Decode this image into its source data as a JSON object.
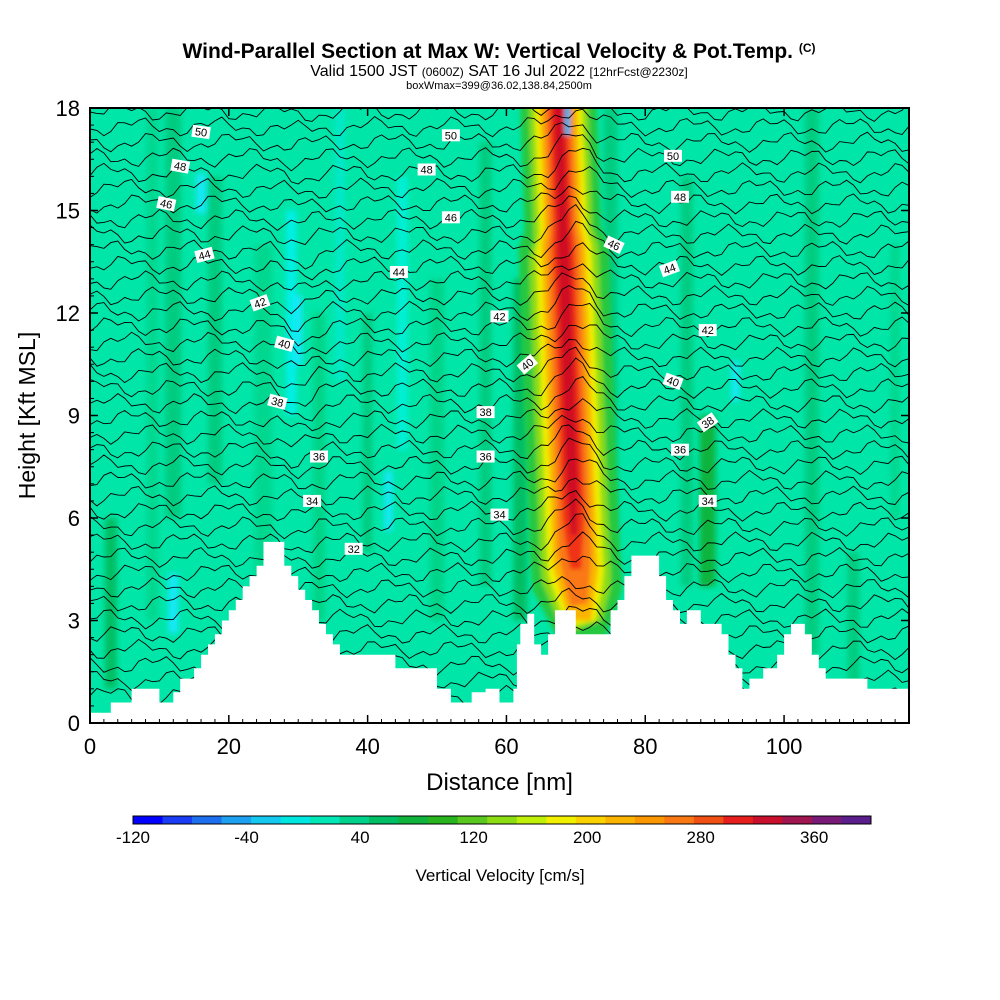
{
  "title": {
    "main": "Wind-Parallel Section at Max W: Vertical Velocity & Pot.Temp.",
    "copyright": "(C)",
    "valid_prefix": "Valid 1500 JST",
    "valid_zulu": "(0600Z)",
    "valid_date": "SAT 16 Jul 2022",
    "forecast": "[12hrFcst@2230z]",
    "box": "boxWmax=399@36.02,138.84,2500m"
  },
  "chart_data": {
    "type": "heatmap",
    "xlabel": "Distance [nm]",
    "ylabel": "Height [Kft MSL]",
    "xlim": [
      0,
      118
    ],
    "ylim": [
      0,
      18
    ],
    "x_ticks": [
      0,
      20,
      40,
      60,
      80,
      100
    ],
    "y_ticks": [
      0,
      3,
      6,
      9,
      12,
      15,
      18
    ],
    "colorbar": {
      "label": "Vertical Velocity [cm/s]",
      "ticks": [
        "-120",
        "-40",
        "40",
        "120",
        "200",
        "280",
        "360"
      ],
      "colors": [
        "#0000ff",
        "#1a3cf5",
        "#1e6ef0",
        "#1ea0f0",
        "#14c8f0",
        "#00e6e0",
        "#00e6b4",
        "#00d28c",
        "#00be64",
        "#10b43c",
        "#28b41e",
        "#5ac81e",
        "#8cdc14",
        "#bef00a",
        "#f0f000",
        "#fad200",
        "#fab400",
        "#fa9600",
        "#fa7814",
        "#f05014",
        "#e61e1e",
        "#c8102d",
        "#a01450",
        "#7a1a78",
        "#5a1e8c"
      ],
      "min": -120,
      "max": 400
    },
    "updraft_core": {
      "x_center": 70,
      "bottom_kft": 2.5,
      "top_kft": 18,
      "max_w": 399
    },
    "terrain_kft": [
      [
        0,
        0.3
      ],
      [
        3,
        0.3
      ],
      [
        3,
        0.6
      ],
      [
        6,
        0.6
      ],
      [
        6,
        1.0
      ],
      [
        10,
        1.0
      ],
      [
        10,
        0.6
      ],
      [
        12,
        0.6
      ],
      [
        12,
        0.9
      ],
      [
        13,
        0.9
      ],
      [
        13,
        1.3
      ],
      [
        15,
        1.3
      ],
      [
        15,
        1.6
      ],
      [
        16,
        1.6
      ],
      [
        16,
        2.0
      ],
      [
        17,
        2.0
      ],
      [
        17,
        2.3
      ],
      [
        18,
        2.3
      ],
      [
        18,
        2.6
      ],
      [
        19,
        2.6
      ],
      [
        19,
        3.0
      ],
      [
        20,
        3.0
      ],
      [
        20,
        3.3
      ],
      [
        21,
        3.3
      ],
      [
        21,
        3.6
      ],
      [
        22,
        3.6
      ],
      [
        22,
        4.0
      ],
      [
        23,
        4.0
      ],
      [
        23,
        4.3
      ],
      [
        24,
        4.3
      ],
      [
        24,
        4.6
      ],
      [
        25,
        4.6
      ],
      [
        25,
        5.3
      ],
      [
        28,
        5.3
      ],
      [
        28,
        4.6
      ],
      [
        29,
        4.6
      ],
      [
        29,
        4.3
      ],
      [
        30,
        4.3
      ],
      [
        30,
        3.9
      ],
      [
        31,
        3.9
      ],
      [
        31,
        3.6
      ],
      [
        32,
        3.6
      ],
      [
        32,
        3.3
      ],
      [
        33,
        3.3
      ],
      [
        33,
        2.9
      ],
      [
        34,
        2.9
      ],
      [
        34,
        2.6
      ],
      [
        35,
        2.6
      ],
      [
        35,
        2.3
      ],
      [
        36,
        2.3
      ],
      [
        36,
        2.0
      ],
      [
        44,
        2.0
      ],
      [
        44,
        1.6
      ],
      [
        50,
        1.6
      ],
      [
        50,
        1.0
      ],
      [
        52,
        1.0
      ],
      [
        52,
        0.6
      ],
      [
        55,
        0.6
      ],
      [
        55,
        0.9
      ],
      [
        57,
        0.9
      ],
      [
        57,
        1.0
      ],
      [
        59,
        1.0
      ],
      [
        59,
        0.6
      ],
      [
        61,
        0.6
      ],
      [
        61,
        1.0
      ],
      [
        61.5,
        1.0
      ],
      [
        61.5,
        2.3
      ],
      [
        62,
        2.3
      ],
      [
        62,
        2.9
      ],
      [
        63,
        2.9
      ],
      [
        63,
        3.2
      ],
      [
        64,
        3.2
      ],
      [
        64,
        2.3
      ],
      [
        65,
        2.3
      ],
      [
        65,
        2.0
      ],
      [
        66,
        2.0
      ],
      [
        66,
        2.6
      ],
      [
        67,
        2.6
      ],
      [
        67,
        3.3
      ],
      [
        70,
        3.3
      ],
      [
        70,
        2.6
      ],
      [
        72,
        2.6
      ],
      [
        72,
        2.6
      ],
      [
        75,
        2.6
      ],
      [
        75,
        3.3
      ],
      [
        76,
        3.3
      ],
      [
        76,
        3.6
      ],
      [
        77,
        3.6
      ],
      [
        77,
        4.3
      ],
      [
        78,
        4.3
      ],
      [
        78,
        4.9
      ],
      [
        82,
        4.9
      ],
      [
        82,
        4.3
      ],
      [
        83,
        4.3
      ],
      [
        83,
        3.6
      ],
      [
        84,
        3.6
      ],
      [
        84,
        3.3
      ],
      [
        85,
        3.3
      ],
      [
        85,
        2.9
      ],
      [
        86,
        2.9
      ],
      [
        86,
        3.3
      ],
      [
        88,
        3.3
      ],
      [
        88,
        2.9
      ],
      [
        91,
        2.9
      ],
      [
        91,
        2.6
      ],
      [
        92,
        2.6
      ],
      [
        92,
        2.0
      ],
      [
        93,
        2.0
      ],
      [
        93,
        1.6
      ],
      [
        94,
        1.6
      ],
      [
        94,
        1.0
      ],
      [
        95,
        1.0
      ],
      [
        95,
        1.3
      ],
      [
        97,
        1.3
      ],
      [
        97,
        1.6
      ],
      [
        99,
        1.6
      ],
      [
        99,
        2.0
      ],
      [
        100,
        2.0
      ],
      [
        100,
        2.6
      ],
      [
        101,
        2.6
      ],
      [
        101,
        2.9
      ],
      [
        103,
        2.9
      ],
      [
        103,
        2.6
      ],
      [
        104,
        2.6
      ],
      [
        104,
        2.0
      ],
      [
        105,
        2.0
      ],
      [
        105,
        1.6
      ],
      [
        106,
        1.6
      ],
      [
        106,
        1.3
      ],
      [
        112,
        1.3
      ],
      [
        112,
        1.0
      ],
      [
        118,
        1.0
      ]
    ],
    "contour_labels": [
      {
        "label": "50",
        "x": 16,
        "y": 17.3,
        "angle": 8
      },
      {
        "label": "48",
        "x": 13,
        "y": 16.3,
        "angle": 10
      },
      {
        "label": "46",
        "x": 11,
        "y": 15.2,
        "angle": 12
      },
      {
        "label": "44",
        "x": 16.5,
        "y": 13.7,
        "angle": -15
      },
      {
        "label": "42",
        "x": 24.5,
        "y": 12.3,
        "angle": -20
      },
      {
        "label": "40",
        "x": 28,
        "y": 11.1,
        "angle": 15
      },
      {
        "label": "38",
        "x": 27,
        "y": 9.4,
        "angle": 15
      },
      {
        "label": "36",
        "x": 33,
        "y": 7.8,
        "angle": 0
      },
      {
        "label": "34",
        "x": 32,
        "y": 6.5,
        "angle": 0
      },
      {
        "label": "32",
        "x": 38,
        "y": 5.1,
        "angle": 0
      },
      {
        "label": "50",
        "x": 52,
        "y": 17.2,
        "angle": 0
      },
      {
        "label": "48",
        "x": 48.5,
        "y": 16.2,
        "angle": 0
      },
      {
        "label": "46",
        "x": 52,
        "y": 14.8,
        "angle": 0
      },
      {
        "label": "44",
        "x": 44.5,
        "y": 13.2,
        "angle": 0
      },
      {
        "label": "42",
        "x": 59,
        "y": 11.9,
        "angle": 0
      },
      {
        "label": "40",
        "x": 63,
        "y": 10.5,
        "angle": -40
      },
      {
        "label": "38",
        "x": 57,
        "y": 9.1,
        "angle": 0
      },
      {
        "label": "36",
        "x": 57,
        "y": 7.8,
        "angle": 0
      },
      {
        "label": "34",
        "x": 59,
        "y": 6.1,
        "angle": 0
      },
      {
        "label": "50",
        "x": 84,
        "y": 16.6,
        "angle": 0
      },
      {
        "label": "48",
        "x": 85,
        "y": 15.4,
        "angle": 0
      },
      {
        "label": "46",
        "x": 75.5,
        "y": 14.0,
        "angle": 25
      },
      {
        "label": "44",
        "x": 83.5,
        "y": 13.3,
        "angle": -20
      },
      {
        "label": "42",
        "x": 89,
        "y": 11.5,
        "angle": 0
      },
      {
        "label": "40",
        "x": 84,
        "y": 10.0,
        "angle": 20
      },
      {
        "label": "38",
        "x": 89,
        "y": 8.8,
        "angle": -35
      },
      {
        "label": "36",
        "x": 85,
        "y": 8.0,
        "angle": 0
      },
      {
        "label": "34",
        "x": 89,
        "y": 6.5,
        "angle": 0
      }
    ]
  }
}
